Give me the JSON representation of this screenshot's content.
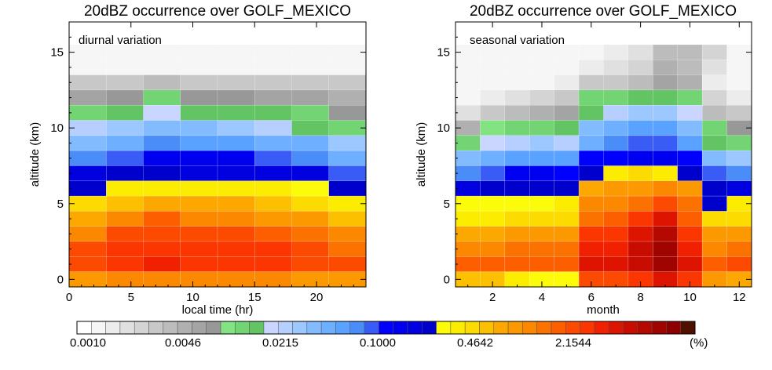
{
  "palette": [
    "#ffffff",
    "#f6f6f6",
    "#ececec",
    "#e0e0e0",
    "#d4d4d4",
    "#c8c8c8",
    "#bcbcbc",
    "#b0b0b0",
    "#a4a4a4",
    "#989898",
    "#83e383",
    "#72d472",
    "#62c462",
    "#cad6ff",
    "#b6cfff",
    "#9cc8ff",
    "#82bcff",
    "#6eb0ff",
    "#5aa2ff",
    "#4a8cf8",
    "#3a5cf6",
    "#0000ff",
    "#0000f0",
    "#0000e0",
    "#0000cc",
    "#fcfc0a",
    "#fcec00",
    "#fcdc00",
    "#fcc000",
    "#fca800",
    "#fc9800",
    "#fc8800",
    "#fc7200",
    "#fc5e00",
    "#fc4a00",
    "#fc3600",
    "#f02000",
    "#dc1400",
    "#c80c00",
    "#b40800",
    "#a00400",
    "#8c0000",
    "#501000"
  ],
  "colorbar": {
    "tick_labels": [
      "0.0010",
      "0.0046",
      "0.0215",
      "0.1000",
      "0.4642",
      "2.1544"
    ],
    "unit_label": "(%)"
  },
  "chart_data": [
    {
      "type": "heatmap",
      "title": "20dBZ occurrence over GOLF_MEXICO",
      "annotation": "diurnal variation",
      "xlabel": "local time (hr)",
      "ylabel": "altitude (km)",
      "xlim": [
        0,
        24
      ],
      "ylim": [
        -0.5,
        17
      ],
      "x_ticks": [
        0,
        5,
        10,
        15,
        20
      ],
      "y_ticks": [
        0,
        5,
        10,
        15
      ],
      "x_edges": [
        0,
        3,
        6,
        9,
        12,
        15,
        18,
        21,
        24
      ],
      "altitude_rows": [
        15,
        14,
        13,
        12,
        11,
        10,
        9,
        8,
        7,
        6,
        5,
        4,
        3,
        2,
        1,
        0
      ],
      "color_index": [
        [
          1,
          1,
          1,
          1,
          1,
          1,
          1,
          1
        ],
        [
          1,
          1,
          1,
          1,
          1,
          1,
          1,
          1
        ],
        [
          5,
          5,
          6,
          5,
          5,
          5,
          5,
          5
        ],
        [
          8,
          9,
          11,
          9,
          9,
          8,
          8,
          7
        ],
        [
          11,
          12,
          13,
          12,
          12,
          12,
          11,
          9
        ],
        [
          14,
          15,
          16,
          16,
          15,
          14,
          12,
          11
        ],
        [
          16,
          17,
          19,
          18,
          18,
          17,
          17,
          15
        ],
        [
          19,
          20,
          22,
          22,
          22,
          20,
          19,
          17
        ],
        [
          23,
          24,
          24,
          23,
          23,
          23,
          23,
          20
        ],
        [
          24,
          26,
          26,
          26,
          26,
          26,
          25,
          24
        ],
        [
          27,
          28,
          29,
          29,
          29,
          28,
          27,
          26
        ],
        [
          29,
          31,
          33,
          31,
          31,
          30,
          30,
          28
        ],
        [
          31,
          34,
          34,
          34,
          34,
          33,
          32,
          31
        ],
        [
          34,
          35,
          35,
          35,
          35,
          35,
          34,
          32
        ],
        [
          34,
          35,
          36,
          35,
          35,
          35,
          34,
          34
        ],
        [
          30,
          31,
          31,
          31,
          31,
          31,
          30,
          30
        ]
      ]
    },
    {
      "type": "heatmap",
      "title": "20dBZ occurrence over GOLF_MEXICO",
      "annotation": "seasonal variation",
      "xlabel": "month",
      "ylabel": "altitude (km)",
      "xlim": [
        0.5,
        12.5
      ],
      "ylim": [
        -0.5,
        17
      ],
      "x_ticks": [
        2,
        4,
        6,
        8,
        10,
        12
      ],
      "y_ticks": [
        0,
        5,
        10,
        15
      ],
      "x_edges": [
        0.5,
        1.5,
        2.5,
        3.5,
        4.5,
        5.5,
        6.5,
        7.5,
        8.5,
        9.5,
        10.5,
        11.5,
        12.5
      ],
      "altitude_rows": [
        15,
        14,
        13,
        12,
        11,
        10,
        9,
        8,
        7,
        6,
        5,
        4,
        3,
        2,
        1,
        0
      ],
      "color_index": [
        [
          1,
          1,
          1,
          1,
          1,
          1,
          2,
          3,
          6,
          6,
          4,
          1
        ],
        [
          1,
          1,
          1,
          1,
          1,
          2,
          3,
          4,
          7,
          6,
          3,
          1
        ],
        [
          1,
          1,
          1,
          1,
          2,
          5,
          5,
          6,
          8,
          7,
          2,
          1
        ],
        [
          1,
          2,
          3,
          4,
          5,
          11,
          11,
          12,
          12,
          11,
          4,
          2
        ],
        [
          3,
          5,
          6,
          7,
          8,
          12,
          14,
          15,
          15,
          13,
          6,
          5
        ],
        [
          7,
          10,
          11,
          11,
          12,
          16,
          17,
          18,
          18,
          16,
          11,
          9
        ],
        [
          11,
          13,
          14,
          15,
          14,
          17,
          19,
          20,
          20,
          18,
          12,
          11
        ],
        [
          16,
          17,
          18,
          18,
          18,
          21,
          21,
          22,
          22,
          21,
          16,
          15
        ],
        [
          19,
          20,
          22,
          22,
          21,
          24,
          26,
          27,
          26,
          24,
          20,
          19
        ],
        [
          23,
          24,
          24,
          24,
          24,
          29,
          30,
          30,
          31,
          30,
          24,
          23
        ],
        [
          25,
          25,
          25,
          25,
          26,
          31,
          31,
          32,
          34,
          32,
          24,
          26
        ],
        [
          26,
          26,
          27,
          27,
          27,
          32,
          33,
          35,
          37,
          33,
          27,
          27
        ],
        [
          29,
          29,
          30,
          30,
          30,
          35,
          35,
          37,
          39,
          35,
          30,
          30
        ],
        [
          31,
          31,
          32,
          32,
          32,
          36,
          36,
          38,
          40,
          36,
          31,
          32
        ],
        [
          33,
          33,
          33,
          33,
          33,
          37,
          37,
          38,
          40,
          37,
          33,
          34
        ],
        [
          28,
          28,
          26,
          25,
          25,
          34,
          34,
          35,
          37,
          35,
          30,
          29
        ]
      ]
    }
  ]
}
